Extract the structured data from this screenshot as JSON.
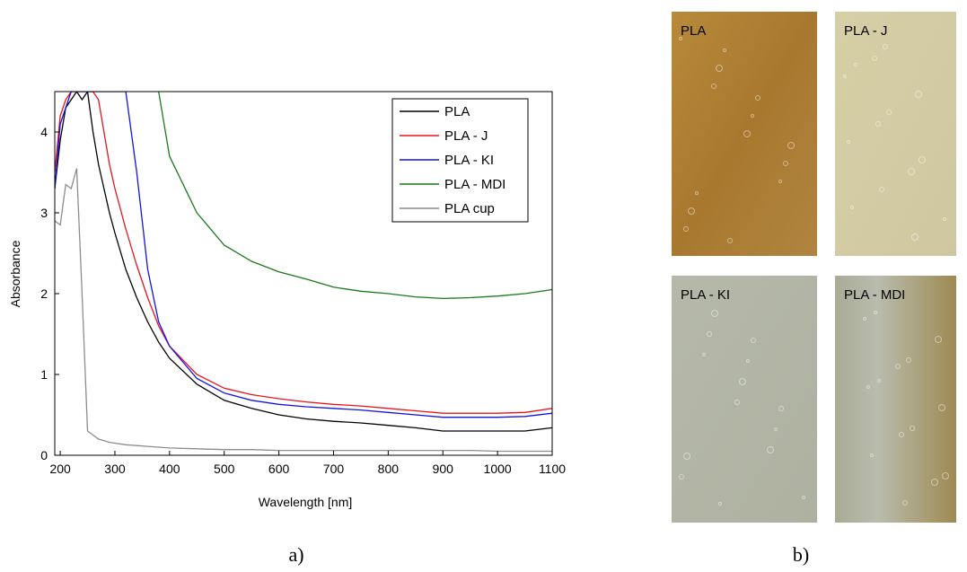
{
  "chart_data": {
    "type": "line",
    "x_label": "Wavelength [nm]",
    "y_label": "Absorbance",
    "x": [
      190,
      200,
      210,
      220,
      230,
      240,
      250,
      260,
      270,
      280,
      290,
      300,
      320,
      340,
      360,
      380,
      400,
      450,
      500,
      550,
      600,
      650,
      700,
      750,
      800,
      850,
      900,
      950,
      1000,
      1050,
      1100
    ],
    "series": [
      {
        "name": "PLA",
        "color": "#000000",
        "values": [
          3.3,
          3.9,
          4.3,
          4.4,
          4.5,
          4.4,
          4.5,
          4.0,
          3.6,
          3.3,
          3.0,
          2.75,
          2.3,
          1.95,
          1.65,
          1.4,
          1.2,
          0.88,
          0.68,
          0.58,
          0.5,
          0.45,
          0.42,
          0.4,
          0.37,
          0.34,
          0.3,
          0.3,
          0.3,
          0.3,
          0.34
        ]
      },
      {
        "name": "PLA - J",
        "color": "#e8141c",
        "values": [
          3.5,
          4.2,
          4.4,
          4.5,
          4.5,
          4.5,
          4.5,
          4.5,
          4.4,
          4.0,
          3.6,
          3.3,
          2.8,
          2.35,
          1.95,
          1.6,
          1.35,
          1.0,
          0.83,
          0.75,
          0.7,
          0.66,
          0.63,
          0.61,
          0.58,
          0.55,
          0.52,
          0.52,
          0.52,
          0.53,
          0.58
        ]
      },
      {
        "name": "PLA - KI",
        "color": "#1414e0",
        "values": [
          3.3,
          4.1,
          4.3,
          4.5,
          4.5,
          4.5,
          4.5,
          4.5,
          4.5,
          4.5,
          4.5,
          4.5,
          4.5,
          3.5,
          2.3,
          1.65,
          1.35,
          0.95,
          0.77,
          0.68,
          0.63,
          0.6,
          0.58,
          0.56,
          0.53,
          0.5,
          0.47,
          0.47,
          0.47,
          0.48,
          0.52
        ]
      },
      {
        "name": "PLA - MDI",
        "color": "#1a7a1a",
        "values": [
          null,
          null,
          null,
          null,
          null,
          null,
          null,
          null,
          null,
          null,
          null,
          null,
          null,
          null,
          null,
          4.5,
          3.7,
          3.0,
          2.6,
          2.4,
          2.27,
          2.18,
          2.08,
          2.03,
          2.0,
          1.96,
          1.94,
          1.95,
          1.97,
          2.0,
          2.05
        ]
      },
      {
        "name": "PLA cup",
        "color": "#8c8c8c",
        "values": [
          2.9,
          2.85,
          3.35,
          3.3,
          3.55,
          2.0,
          0.3,
          0.25,
          0.2,
          0.18,
          0.16,
          0.15,
          0.13,
          0.12,
          0.11,
          0.1,
          0.09,
          0.08,
          0.07,
          0.07,
          0.06,
          0.06,
          0.06,
          0.06,
          0.06,
          0.06,
          0.06,
          0.06,
          0.05,
          0.05,
          0.05
        ]
      }
    ],
    "xlim": [
      190,
      1100
    ],
    "ylim": [
      0,
      4.5
    ],
    "xticks": [
      200,
      300,
      400,
      500,
      600,
      700,
      800,
      900,
      1000,
      1100
    ],
    "yticks": [
      0,
      1,
      2,
      3,
      4
    ],
    "legend": "upper right"
  },
  "photos": [
    "PLA",
    "PLA - J",
    "PLA - KI",
    "PLA - MDI"
  ],
  "panel_labels": [
    "a)",
    "b)"
  ]
}
